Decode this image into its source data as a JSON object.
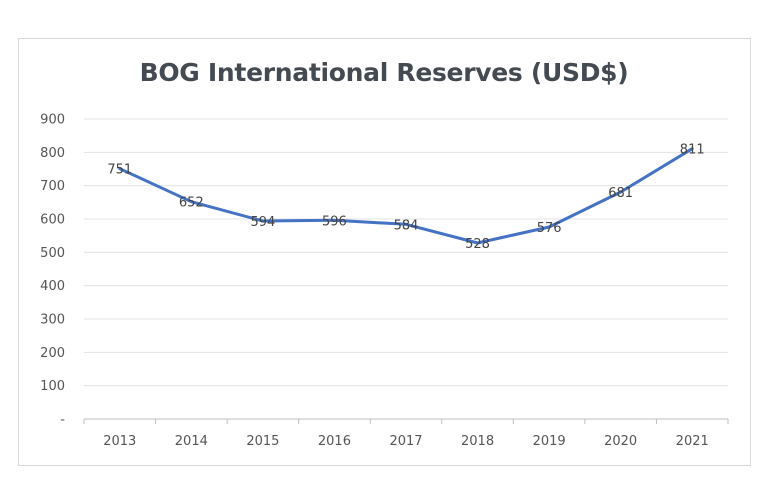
{
  "chart_data": {
    "type": "line",
    "title": "BOG International Reserves (USD$)",
    "xlabel": "",
    "ylabel": "",
    "categories": [
      "2013",
      "2014",
      "2015",
      "2016",
      "2017",
      "2018",
      "2019",
      "2020",
      "2021"
    ],
    "series": [
      {
        "values": [
          751,
          652,
          594,
          596,
          584,
          528,
          576,
          681,
          811
        ],
        "color": "#4472c4"
      }
    ],
    "y_tick_labels": [
      "-",
      "100",
      "200",
      "300",
      "400",
      "500",
      "600",
      "700",
      "800",
      "900"
    ],
    "ylim": [
      0,
      900
    ],
    "grid": true,
    "legend": "none"
  }
}
